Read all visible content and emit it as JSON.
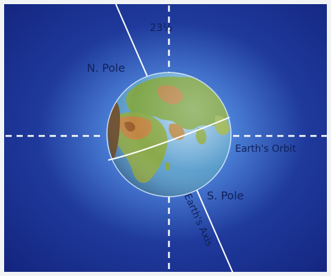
{
  "labels": {
    "angle": "23½",
    "north_pole": "N. Pole",
    "south_pole": "S. Pole",
    "orbit": "Earth's Orbit",
    "axis": "Earth's Axis"
  },
  "colors": {
    "background_edge": "#12237c",
    "background_glow": "#8fc6ff",
    "ocean": "#4f92c6",
    "land": "#7da84a",
    "desert": "#b9823f",
    "lines": "#ffffff",
    "label_text": "#10205a"
  }
}
